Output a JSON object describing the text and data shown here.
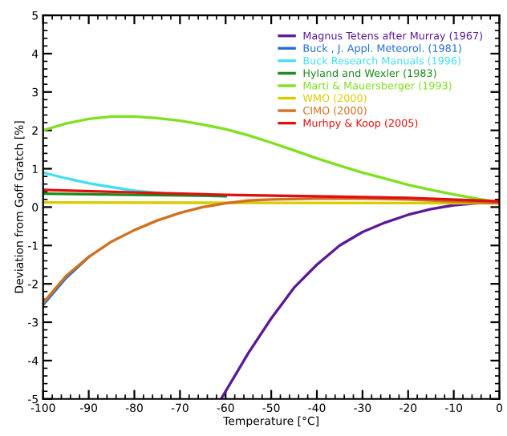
{
  "chart_data": {
    "type": "line",
    "xlabel": "Temperature [°C]",
    "ylabel": "Deviation from Goff Gratch [%]",
    "xlim": [
      -100,
      0
    ],
    "xticks": [
      -100,
      -90,
      -80,
      -70,
      -60,
      -50,
      -40,
      -30,
      -20,
      -10,
      0
    ],
    "ylim": [
      -5,
      5
    ],
    "yticks": [
      -5,
      -4,
      -3,
      -2,
      -1,
      0,
      1,
      2,
      3,
      4,
      5
    ],
    "grid": false,
    "legend": "top right",
    "marker": "none",
    "line_style": "solid",
    "series": [
      {
        "name": "Magnus Tetens after Murray (1967)",
        "color": "#5a1a9a",
        "x": [
          -61,
          -58,
          -55,
          -50,
          -45,
          -40,
          -35,
          -30,
          -25,
          -20,
          -15,
          -10,
          -5,
          0
        ],
        "values": [
          -5,
          -4.4,
          -3.8,
          -2.9,
          -2.1,
          -1.5,
          -1.0,
          -0.65,
          -0.4,
          -0.2,
          -0.05,
          0.05,
          0.1,
          0.12
        ]
      },
      {
        "name": "Buck , J. Appl. Meteorol. (1981)",
        "color": "#1f6fd0",
        "x": [
          -100,
          -95,
          -90
        ],
        "values": [
          -2.55,
          -1.85,
          -1.3
        ]
      },
      {
        "name": "Buck Research Manuals (1996)",
        "color": "#40e0f0",
        "x": [
          -100,
          -95,
          -90,
          -85,
          -80,
          -75,
          -70,
          -60
        ],
        "values": [
          0.9,
          0.75,
          0.62,
          0.52,
          0.43,
          0.37,
          0.32,
          0.28
        ]
      },
      {
        "name": "Hyland and Wexler (1983)",
        "color": "#1a8a1a",
        "x": [
          -100,
          -80,
          -60
        ],
        "values": [
          0.35,
          0.32,
          0.29
        ]
      },
      {
        "name": "Marti & Mauersberger (1993)",
        "color": "#80e020",
        "x": [
          -100,
          -95,
          -90,
          -85,
          -80,
          -75,
          -70,
          -65,
          -60,
          -55,
          -50,
          -45,
          -40,
          -35,
          -30,
          -25,
          -20,
          -15,
          -10,
          -5,
          0
        ],
        "values": [
          2.0,
          2.18,
          2.3,
          2.36,
          2.36,
          2.32,
          2.25,
          2.15,
          2.03,
          1.87,
          1.68,
          1.48,
          1.27,
          1.08,
          0.9,
          0.74,
          0.58,
          0.45,
          0.33,
          0.22,
          0.12
        ]
      },
      {
        "name": "WMO (2000)",
        "color": "#d8cc00",
        "x": [
          -100,
          -50,
          0
        ],
        "values": [
          0.12,
          0.11,
          0.1
        ]
      },
      {
        "name": "CIMO (2000)",
        "color": "#d07020",
        "x": [
          -100,
          -95,
          -90,
          -85,
          -80,
          -75,
          -70,
          -65,
          -60,
          -55,
          -50,
          -40,
          -30,
          -20,
          -10,
          0
        ],
        "values": [
          -2.5,
          -1.8,
          -1.3,
          -0.9,
          -0.6,
          -0.35,
          -0.15,
          0.0,
          0.1,
          0.17,
          0.2,
          0.22,
          0.22,
          0.2,
          0.15,
          0.1
        ]
      },
      {
        "name": "Murhpy & Koop (2005)",
        "color": "#e01010",
        "x": [
          -100,
          -80,
          -60,
          -40,
          -20,
          0
        ],
        "values": [
          0.45,
          0.38,
          0.32,
          0.28,
          0.24,
          0.15
        ]
      }
    ]
  }
}
